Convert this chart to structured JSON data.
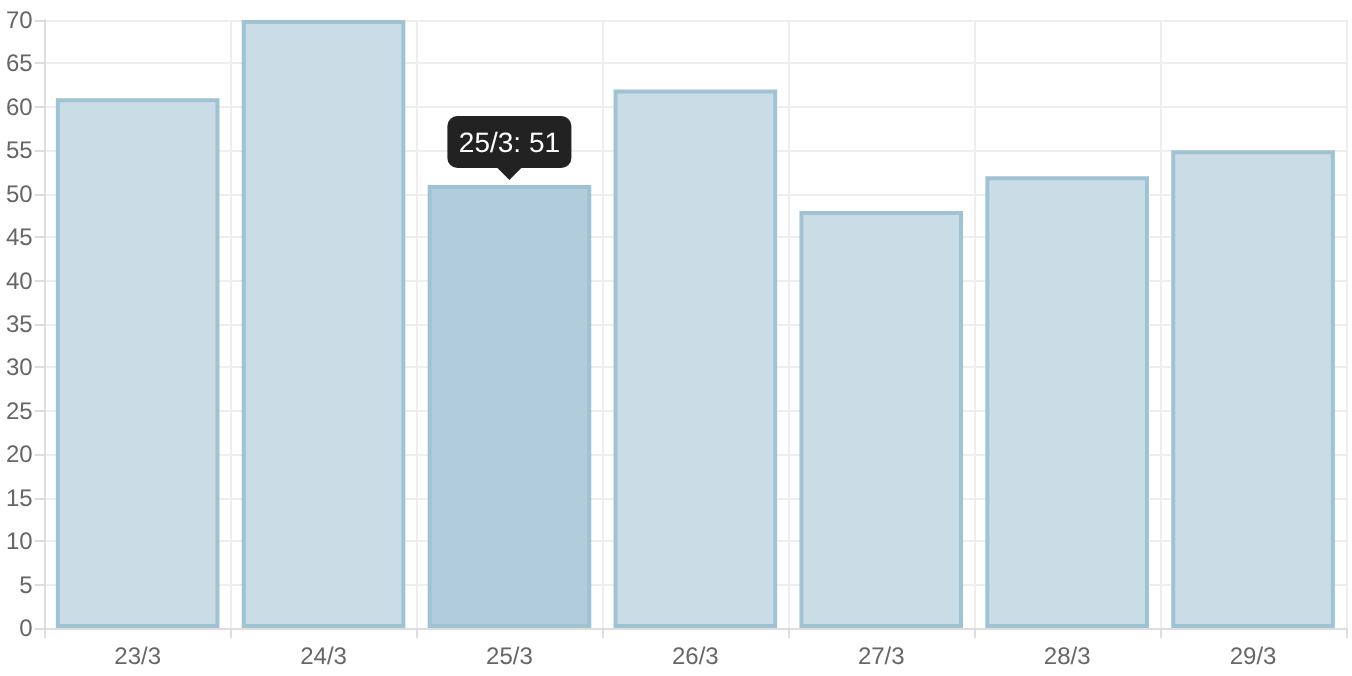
{
  "chart_data": {
    "type": "bar",
    "categories": [
      "23/3",
      "24/3",
      "25/3",
      "26/3",
      "27/3",
      "28/3",
      "29/3"
    ],
    "values": [
      61,
      70,
      51,
      62,
      48,
      52,
      55
    ],
    "colors": [
      "#cadde6",
      "#cadde6",
      "#b1cddb",
      "#cadde6",
      "#cadde6",
      "#cadde6",
      "#cadde6"
    ],
    "ylim": [
      0,
      70
    ],
    "yticks": [
      0,
      5,
      10,
      15,
      20,
      25,
      30,
      35,
      40,
      45,
      50,
      55,
      60,
      65,
      70
    ],
    "grid": true,
    "annotations": [
      {
        "text": "25/3: 51",
        "x": "25/3",
        "y": 51
      }
    ]
  }
}
